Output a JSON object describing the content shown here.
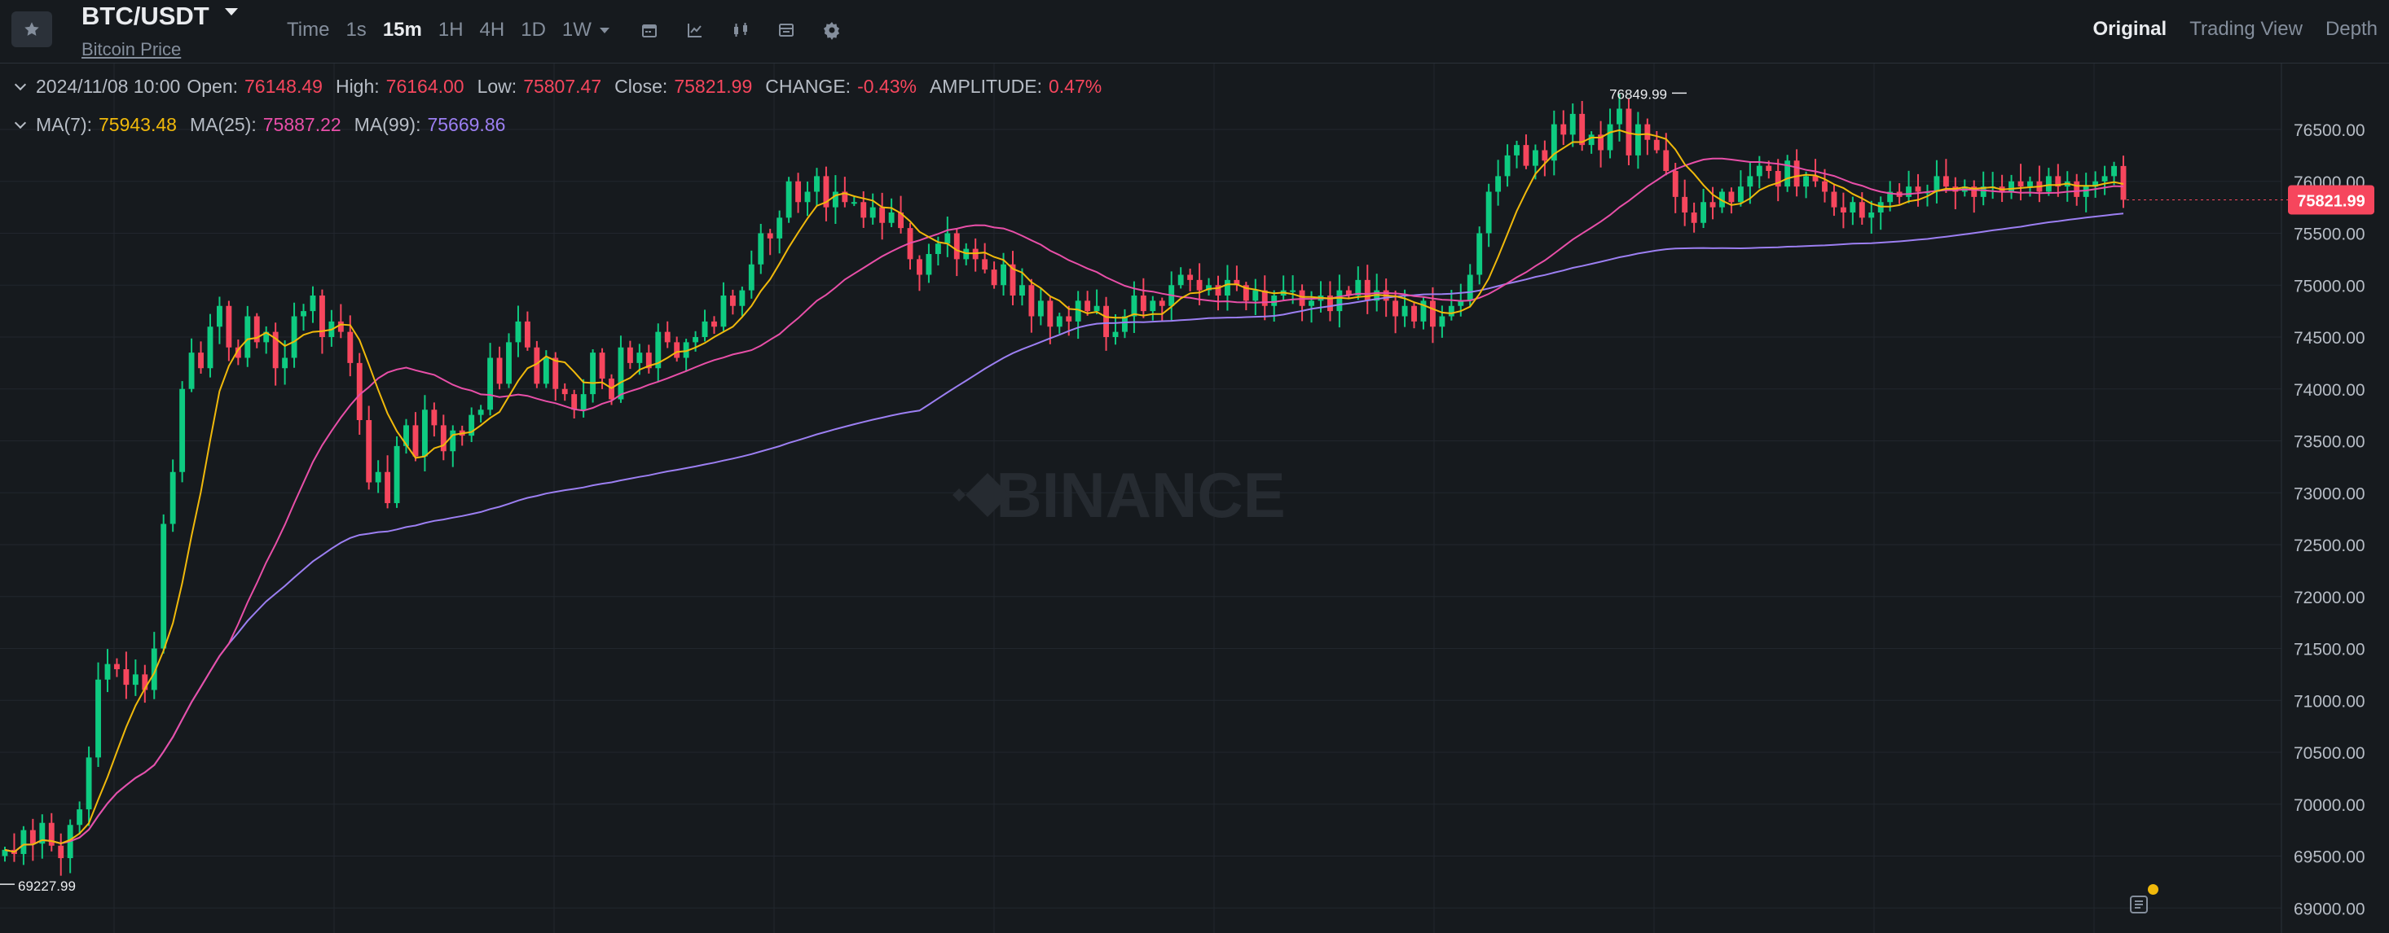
{
  "header": {
    "symbol": "BTC/USDT",
    "subtitle": "Bitcoin Price",
    "intervals": [
      {
        "label": "Time",
        "active": false
      },
      {
        "label": "1s",
        "active": false
      },
      {
        "label": "15m",
        "active": true
      },
      {
        "label": "1H",
        "active": false
      },
      {
        "label": "4H",
        "active": false
      },
      {
        "label": "1D",
        "active": false
      },
      {
        "label": "1W",
        "active": false
      }
    ],
    "tools": [
      "calendar-icon",
      "indicator-icon",
      "candle-type-icon",
      "layout-icon",
      "settings-icon"
    ],
    "views": [
      {
        "label": "Original",
        "active": true
      },
      {
        "label": "Trading View",
        "active": false
      },
      {
        "label": "Depth",
        "active": false
      }
    ]
  },
  "ohlc": {
    "date": "2024/11/08 10:00",
    "open_label": "Open:",
    "open": "76148.49",
    "high_label": "High:",
    "high": "76164.00",
    "low_label": "Low:",
    "low": "75807.47",
    "close_label": "Close:",
    "close": "75821.99",
    "change_label": "CHANGE:",
    "change": "-0.43%",
    "amplitude_label": "AMPLITUDE:",
    "amplitude": "0.47%"
  },
  "ma": {
    "ma7_label": "MA(7):",
    "ma7": "75943.48",
    "ma25_label": "MA(25):",
    "ma25": "75887.22",
    "ma99_label": "MA(99):",
    "ma99": "75669.86"
  },
  "colors": {
    "up": "#0ecb81",
    "down": "#f6465d",
    "ma7": "#f0b90b",
    "ma25": "#e84fa8",
    "ma99": "#9c7ff2",
    "background": "#161a1e",
    "grid": "#21262d"
  },
  "chart_data": {
    "type": "candlestick",
    "symbol": "BTC/USDT",
    "interval": "15m",
    "ylim": [
      68900,
      76900
    ],
    "y_ticks": [
      "76500.00",
      "76000.00",
      "75500.00",
      "75000.00",
      "74500.00",
      "74000.00",
      "73500.00",
      "73000.00",
      "72500.00",
      "72000.00",
      "71500.00",
      "71000.00",
      "70500.00",
      "70000.00",
      "69500.00",
      "69000.00"
    ],
    "last_price_label": "75821.99",
    "high_marker": "76849.99",
    "low_marker": "69227.99",
    "watermark": "BINANCE",
    "closes": [
      69560,
      69520,
      69750,
      69620,
      69820,
      69600,
      69480,
      69800,
      69950,
      70450,
      71200,
      71350,
      71300,
      71150,
      71250,
      71100,
      71500,
      72700,
      73200,
      74000,
      74350,
      74200,
      74600,
      74800,
      74400,
      74300,
      74700,
      74450,
      74550,
      74200,
      74300,
      74700,
      74750,
      74900,
      74500,
      74650,
      74550,
      74250,
      73700,
      73100,
      73200,
      72900,
      73450,
      73650,
      73350,
      73800,
      73650,
      73400,
      73600,
      73550,
      73750,
      73800,
      74300,
      74050,
      74450,
      74650,
      74400,
      74050,
      74300,
      74000,
      73950,
      73800,
      73950,
      74350,
      74100,
      73900,
      74400,
      74250,
      74350,
      74200,
      74550,
      74450,
      74300,
      74450,
      74500,
      74650,
      74600,
      74900,
      74800,
      74950,
      75200,
      75500,
      75450,
      75650,
      76000,
      75800,
      75900,
      76050,
      75750,
      75900,
      75800,
      75800,
      75650,
      75750,
      75600,
      75700,
      75550,
      75250,
      75100,
      75300,
      75400,
      75500,
      75250,
      75350,
      75250,
      75150,
      75000,
      75200,
      74900,
      75000,
      74700,
      74850,
      74600,
      74700,
      74650,
      74850,
      74750,
      74800,
      74500,
      74550,
      74700,
      74900,
      74750,
      74850,
      74800,
      75000,
      75100,
      75050,
      74950,
      75000,
      74900,
      75050,
      75000,
      74850,
      74950,
      74800,
      74900,
      74950,
      74950,
      74800,
      74850,
      74900,
      74750,
      74950,
      74900,
      75050,
      74850,
      74950,
      74850,
      74700,
      74800,
      74650,
      74850,
      74600,
      74700,
      74800,
      74850,
      75100,
      75500,
      75900,
      76050,
      76250,
      76350,
      76150,
      76300,
      76200,
      76550,
      76450,
      76650,
      76350,
      76450,
      76300,
      76550,
      76700,
      76250,
      76550,
      76400,
      76300,
      76100,
      75850,
      75700,
      75600,
      75800,
      75750,
      75900,
      75800,
      75950,
      76050,
      76150,
      76100,
      75950,
      76200,
      75950,
      76050,
      76000,
      75900,
      75750,
      75700,
      75800,
      75650,
      75700,
      75800,
      75900,
      75850,
      75950,
      75900,
      75900,
      76050,
      75950,
      75900,
      75950,
      75850,
      75950,
      75950,
      75900,
      76000,
      75950,
      76000,
      75900,
      76050,
      75950,
      76000,
      75850,
      75950,
      76000,
      76050,
      76148,
      75822
    ],
    "ma_series": [
      "MA(7)",
      "MA(25)",
      "MA(99)"
    ]
  }
}
